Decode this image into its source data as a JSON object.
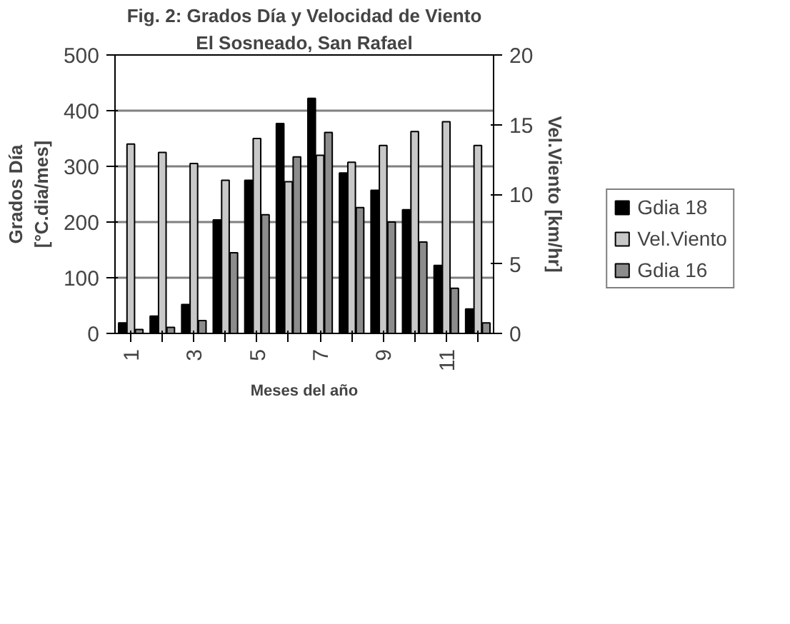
{
  "chart_data": {
    "type": "bar",
    "title": "Fig. 2: Grados Día y Velocidad de Viento",
    "subtitle": "El Sosneado, San Rafael",
    "xlabel": "Meses del año",
    "ylabel": "Grados Día\n[°C.dia/mes]",
    "y2label": "Vel.Viento [km/hr]",
    "categories": [
      "1",
      null,
      "3",
      null,
      "5",
      null,
      "7",
      null,
      "9",
      null,
      "11",
      null
    ],
    "series": [
      {
        "name": "Gdia 18",
        "color": "#000000",
        "values": [
          19,
          31,
          52,
          204,
          275,
          377,
          422,
          288,
          257,
          222,
          122,
          44
        ]
      },
      {
        "name": "Vel.Viento",
        "color": "#c8c8c8",
        "axis": "y2",
        "values": [
          13.6,
          13.0,
          12.2,
          11.0,
          14.0,
          10.9,
          12.8,
          12.3,
          13.5,
          14.5,
          15.2,
          13.5
        ]
      },
      {
        "name": "Gdia 16",
        "color": "#8c8c8c",
        "values": [
          7,
          11,
          23,
          145,
          213,
          317,
          361,
          226,
          200,
          164,
          81,
          19
        ]
      }
    ],
    "ylim": [
      0,
      500
    ],
    "yticks": [
      0,
      100,
      200,
      300,
      400,
      500
    ],
    "y2lim": [
      0,
      20
    ],
    "y2ticks": [
      0,
      5,
      10,
      15,
      20
    ],
    "grid": "y",
    "legend": "right"
  }
}
